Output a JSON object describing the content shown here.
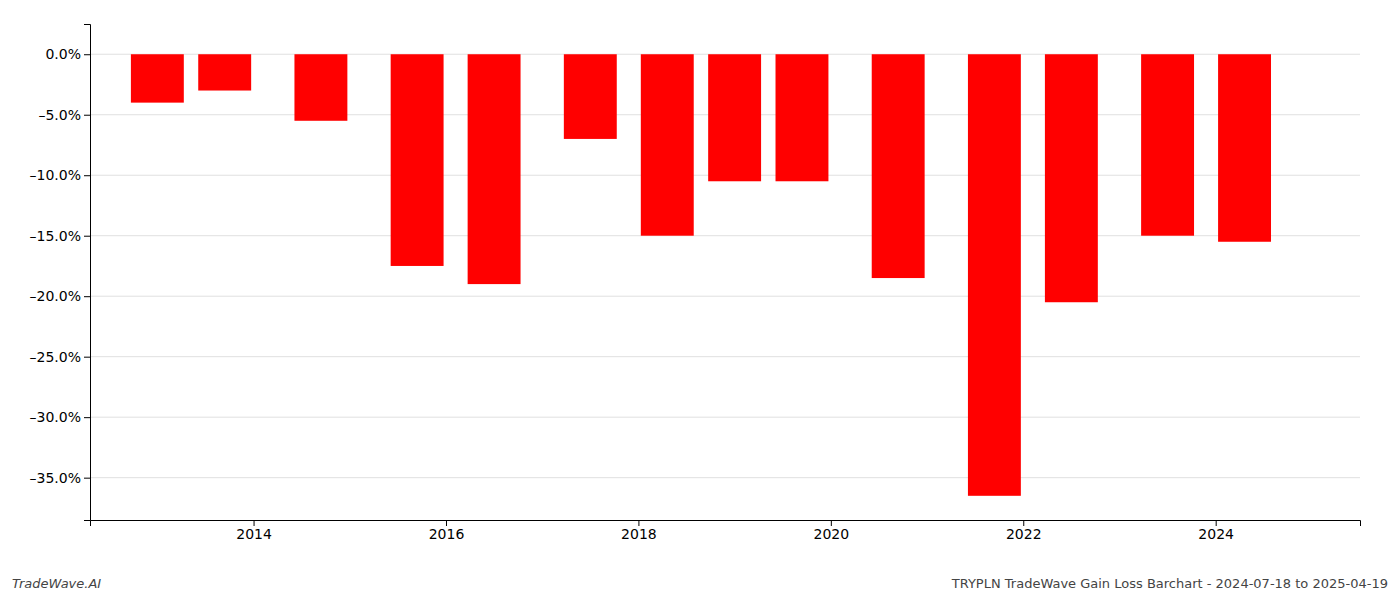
{
  "chart_data": {
    "type": "bar",
    "x": [
      2013,
      2013.7,
      2014.7,
      2015.7,
      2016.5,
      2017.5,
      2018.3,
      2019.0,
      2019.7,
      2020.7,
      2021.7,
      2022.5,
      2023.5,
      2024.3
    ],
    "values": [
      -0.04,
      -0.03,
      -0.055,
      -0.175,
      -0.19,
      -0.07,
      -0.15,
      -0.105,
      -0.105,
      -0.185,
      -0.365,
      -0.205,
      -0.15,
      -0.155
    ],
    "color": "#ff0000",
    "xlim": [
      2012.3,
      2025.5
    ],
    "xticks": [
      2014,
      2016,
      2018,
      2020,
      2022,
      2024
    ],
    "ylim": [
      -0.385,
      0.025
    ],
    "yticks": [
      {
        "value": 0.0,
        "label": "0.0%"
      },
      {
        "value": -0.05,
        "label": "–5.0%"
      },
      {
        "value": -0.1,
        "label": "–10.0%"
      },
      {
        "value": -0.15,
        "label": "–15.0%"
      },
      {
        "value": -0.2,
        "label": "–20.0%"
      },
      {
        "value": -0.25,
        "label": "–25.0%"
      },
      {
        "value": -0.3,
        "label": "–30.0%"
      },
      {
        "value": -0.35,
        "label": "–35.0%"
      }
    ],
    "grid": true,
    "annotations": [
      "TradeWave.AI",
      "TRYPLN TradeWave Gain Loss Barchart - 2024-07-18 to 2025-04-19"
    ]
  }
}
